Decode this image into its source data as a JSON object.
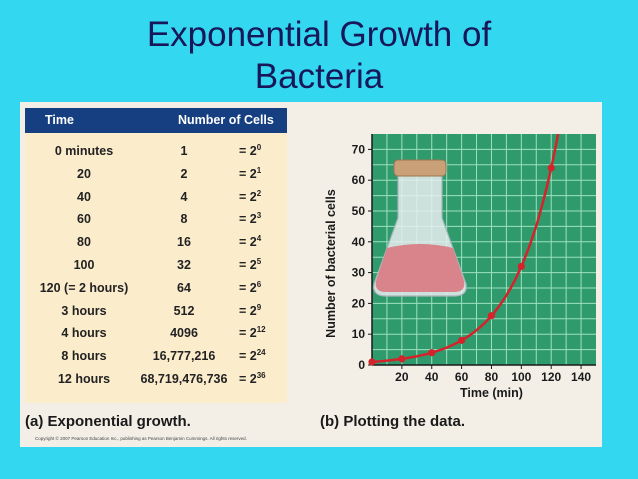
{
  "slide": {
    "title_line1": "Exponential Growth of",
    "title_line2": "Bacteria"
  },
  "table": {
    "headers": {
      "time": "Time",
      "cells": "Number of Cells"
    },
    "rows": [
      {
        "time": "0 minutes",
        "cells": "1",
        "pow_base": "= 2",
        "exp": "0"
      },
      {
        "time": "20",
        "cells": "2",
        "pow_base": "= 2",
        "exp": "1"
      },
      {
        "time": "40",
        "cells": "4",
        "pow_base": "= 2",
        "exp": "2"
      },
      {
        "time": "60",
        "cells": "8",
        "pow_base": "= 2",
        "exp": "3"
      },
      {
        "time": "80",
        "cells": "16",
        "pow_base": "= 2",
        "exp": "4"
      },
      {
        "time": "100",
        "cells": "32",
        "pow_base": "= 2",
        "exp": "5"
      },
      {
        "time": "120 (= 2 hours)",
        "cells": "64",
        "pow_base": "= 2",
        "exp": "6"
      },
      {
        "time": "3 hours",
        "cells": "512",
        "pow_base": "= 2",
        "exp": "9"
      },
      {
        "time": "4 hours",
        "cells": "4096",
        "pow_base": "= 2",
        "exp": "12"
      },
      {
        "time": "8 hours",
        "cells": "16,777,216",
        "pow_base": "= 2",
        "exp": "24"
      },
      {
        "time": "12 hours",
        "cells": "68,719,476,736",
        "pow_base": "= 2",
        "exp": "36"
      }
    ]
  },
  "captions": {
    "a": "(a) Exponential growth.",
    "b": "(b) Plotting the data.",
    "copyright": "Copyright © 2007 Pearson Education Inc., publishing as Pearson Benjamin Cummings. All rights reserved."
  },
  "colors": {
    "background": "#34d7f0",
    "plot_bg": "#2f9b6c",
    "grid": "#9ee0c0",
    "line": "#d4232a",
    "header": "#163f82"
  },
  "chart_data": {
    "type": "line",
    "xlabel": "Time (min)",
    "ylabel": "Number of bacterial cells",
    "xlim": [
      0,
      150
    ],
    "ylim": [
      0,
      75
    ],
    "x_ticks": [
      20,
      40,
      60,
      80,
      100,
      120,
      140
    ],
    "y_ticks": [
      0,
      10,
      20,
      30,
      40,
      50,
      60,
      70
    ],
    "grid": true,
    "series": [
      {
        "points": [
          [
            0,
            1
          ],
          [
            20,
            2
          ],
          [
            40,
            4
          ],
          [
            60,
            8
          ],
          [
            80,
            16
          ],
          [
            100,
            32
          ],
          [
            120,
            64
          ]
        ]
      }
    ]
  }
}
